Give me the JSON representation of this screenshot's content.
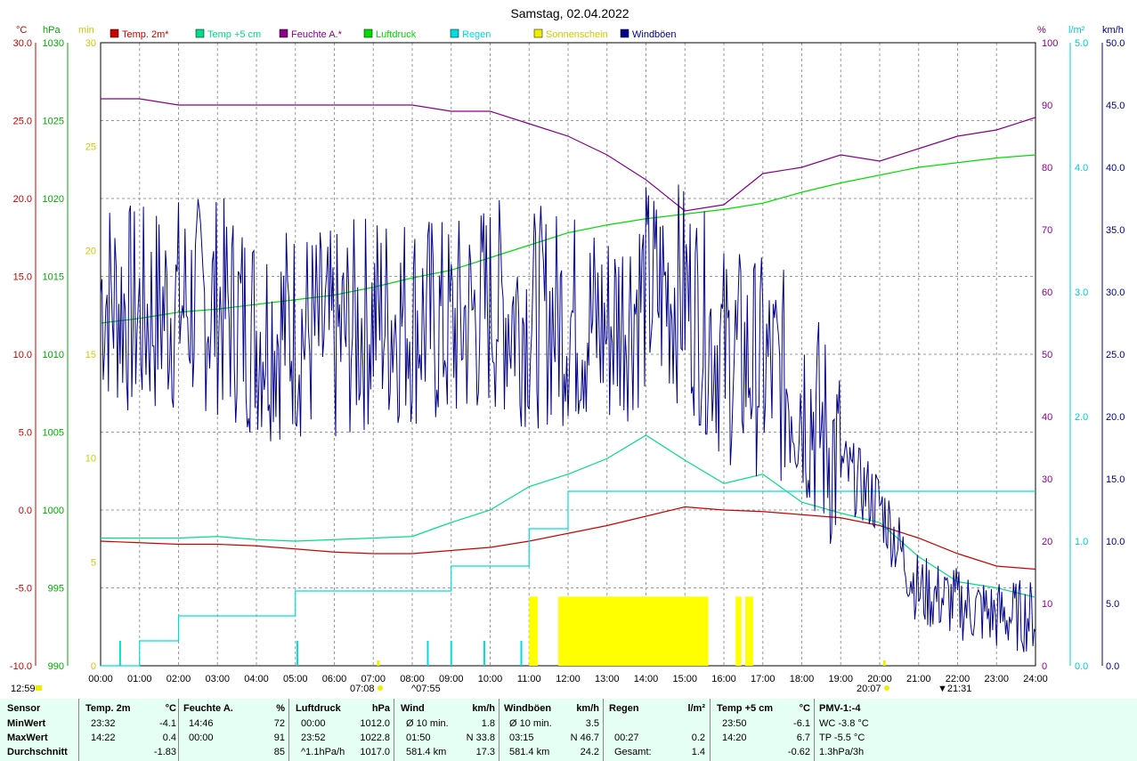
{
  "title": "Samstag, 02.04.2022",
  "axes": {
    "left1_unit": "°C",
    "left2_unit": "hPa",
    "left3_unit": "min",
    "right1_unit": "%",
    "right2_unit": "l/m²",
    "right3_unit": "km/h",
    "temp_ticks": [
      "30.0",
      "25.0",
      "20.0",
      "15.0",
      "10.0",
      "5.0",
      "0.0",
      "-5.0",
      "-10.0"
    ],
    "hpa_ticks": [
      "1030",
      "1025",
      "1020",
      "1015",
      "1010",
      "1005",
      "1000",
      "995",
      "990"
    ],
    "min_ticks": [
      "30",
      "25",
      "20",
      "15",
      "10",
      "5",
      "0"
    ],
    "hum_ticks": [
      "100",
      "90",
      "80",
      "70",
      "60",
      "50",
      "40",
      "30",
      "20",
      "10",
      "0"
    ],
    "rain_ticks": [
      "5.0",
      "4.0",
      "3.0",
      "2.0",
      "1.0",
      "0.0"
    ],
    "wind_ticks": [
      "50.0",
      "45.0",
      "40.0",
      "35.0",
      "30.0",
      "25.0",
      "20.0",
      "15.0",
      "10.0",
      "5.0",
      "0.0"
    ],
    "hour_labels": [
      "00:00",
      "01:00",
      "02:00",
      "03:00",
      "04:00",
      "05:00",
      "06:00",
      "07:00",
      "08:00",
      "09:00",
      "10:00",
      "11:00",
      "12:00",
      "13:00",
      "14:00",
      "15:00",
      "16:00",
      "17:00",
      "18:00",
      "19:00",
      "20:00",
      "21:00",
      "22:00",
      "23:00",
      "24:00"
    ]
  },
  "markers": {
    "moonset": "12:59",
    "sunrise": "07:08",
    "moonrise_label": "07:55",
    "sunset": "20:07",
    "moon2": "21:31"
  },
  "legend": [
    {
      "label": "Temp. 2m*",
      "color": "#cc0000"
    },
    {
      "label": "Temp +5 cm",
      "color": "#00dd88"
    },
    {
      "label": "Feuchte A.*",
      "color": "#880088"
    },
    {
      "label": "Luftdruck",
      "color": "#00dd00"
    },
    {
      "label": "Regen",
      "color": "#00dddd"
    },
    {
      "label": "Sonnenschein",
      "color": "#eeee00"
    },
    {
      "label": "Windböen",
      "color": "#000088"
    }
  ],
  "chart_data": {
    "type": "line",
    "title": "Samstag, 02.04.2022",
    "x_hours": [
      0,
      1,
      2,
      3,
      4,
      5,
      6,
      7,
      8,
      9,
      10,
      11,
      12,
      13,
      14,
      15,
      16,
      17,
      18,
      19,
      20,
      21,
      22,
      23,
      24
    ],
    "series": [
      {
        "name": "Temp. 2m*",
        "axis": "°C",
        "color": "#cc0000",
        "values": [
          -2.0,
          -2.1,
          -2.2,
          -2.2,
          -2.3,
          -2.5,
          -2.7,
          -2.8,
          -2.8,
          -2.6,
          -2.4,
          -2.0,
          -1.5,
          -1.0,
          -0.4,
          0.2,
          0.0,
          -0.1,
          -0.3,
          -0.5,
          -1.0,
          -1.8,
          -2.8,
          -3.6,
          -3.8
        ]
      },
      {
        "name": "Temp +5 cm",
        "axis": "°C",
        "color": "#00dd88",
        "values": [
          -1.8,
          -1.8,
          -1.8,
          -1.7,
          -1.9,
          -2.0,
          -1.9,
          -1.8,
          -1.7,
          -0.8,
          0.0,
          1.5,
          2.3,
          3.3,
          4.8,
          3.2,
          1.7,
          2.3,
          0.5,
          -0.2,
          -0.8,
          -3.0,
          -4.6,
          -5.0,
          -5.6
        ]
      },
      {
        "name": "Feuchte A.*",
        "axis": "%",
        "color": "#880088",
        "values": [
          91,
          91,
          90,
          90,
          90,
          90,
          90,
          90,
          90,
          89,
          89,
          87,
          85,
          82,
          78,
          73,
          74,
          79,
          80,
          82,
          81,
          83,
          85,
          86,
          88
        ]
      },
      {
        "name": "Luftdruck",
        "axis": "hPa",
        "color": "#00dd00",
        "values": [
          1012.0,
          1012.3,
          1012.7,
          1012.9,
          1013.2,
          1013.5,
          1013.8,
          1014.3,
          1014.9,
          1015.4,
          1016.2,
          1017.0,
          1017.8,
          1018.3,
          1018.7,
          1019.0,
          1019.3,
          1019.7,
          1020.4,
          1021.0,
          1021.5,
          1022.0,
          1022.3,
          1022.6,
          1022.8
        ]
      },
      {
        "name": "Regen",
        "axis": "l/m²",
        "color": "#00dddd",
        "values": [
          0.0,
          0.2,
          0.4,
          0.4,
          0.4,
          0.6,
          0.6,
          0.6,
          0.6,
          0.8,
          0.8,
          1.1,
          1.4,
          1.4,
          1.4,
          1.4,
          1.4,
          1.4,
          1.4,
          1.4,
          1.4,
          1.4,
          1.4,
          1.4,
          1.4
        ]
      },
      {
        "name": "Windböen",
        "axis": "km/h",
        "color": "#000088",
        "values": [
          30,
          28,
          29,
          29,
          27,
          27,
          26,
          28,
          28,
          27,
          29,
          28,
          28,
          27,
          30,
          30,
          25,
          24,
          22,
          16,
          13,
          6,
          5,
          4,
          4
        ]
      }
    ],
    "sunshine_blocks": [
      [
        11.0,
        11.22
      ],
      [
        11.75,
        15.6
      ],
      [
        16.3,
        16.45
      ],
      [
        16.55,
        16.75
      ]
    ],
    "ylim_temp": [
      -10,
      30
    ],
    "ylim_hpa": [
      990,
      1030
    ],
    "ylim_hum": [
      0,
      100
    ],
    "ylim_rain": [
      0,
      5
    ],
    "ylim_wind": [
      0,
      50
    ],
    "grid": true
  },
  "stats": {
    "col_sensor": {
      "h": "Sensor",
      "r1": "MinWert",
      "r2": "MaxWert",
      "r3": "Durchschnitt"
    },
    "col_temp": {
      "h": "Temp. 2m",
      "u": "°C",
      "r1t": "23:32",
      "r1v": "-4.1",
      "r2t": "14:22",
      "r2v": "0.4",
      "r3t": "",
      "r3v": "-1.83"
    },
    "col_hum": {
      "h": "Feuchte A.",
      "u": "%",
      "r1t": "14:46",
      "r1v": "72",
      "r2t": "00:00",
      "r2v": "91",
      "r3t": "",
      "r3v": "85"
    },
    "col_press": {
      "h": "Luftdruck",
      "u": "hPa",
      "r1t": "00:00",
      "r1v": "1012.0",
      "r2t": "23:52",
      "r2v": "1022.8",
      "r3t": "^1.1hPa/h",
      "r3v": "1017.0"
    },
    "col_wind": {
      "h": "Wind",
      "u": "km/h",
      "r1t": "Ø 10 min.",
      "r1v": "1.8",
      "r2t": "01:50",
      "r2v": "N 33.8",
      "r3t": "581.4 km",
      "r3v": "17.3"
    },
    "col_gust": {
      "h": "Windböen",
      "u": "km/h",
      "r1t": "Ø 10 min.",
      "r1v": "3.5",
      "r2t": "03:15",
      "r2v": "N 46.7",
      "r3t": "581.4 km",
      "r3v": "24.2"
    },
    "col_rain": {
      "h": "Regen",
      "u": "l/m²",
      "r1t": "",
      "r1v": "",
      "r2t": "00:27",
      "r2v": "0.2",
      "r3t": "Gesamt:",
      "r3v": "1.4"
    },
    "col_t5": {
      "h": "Temp +5 cm",
      "u": "°C",
      "r1t": "23:50",
      "r1v": "-6.1",
      "r2t": "14:20",
      "r2v": "6.7",
      "r3t": "",
      "r3v": "-0.62"
    },
    "col_pmv": {
      "h": "PMV-1:-4",
      "r1": "WC -3.8 °C",
      "r2": "TP -5.5 °C",
      "r3": "1.3hPa/3h"
    }
  }
}
